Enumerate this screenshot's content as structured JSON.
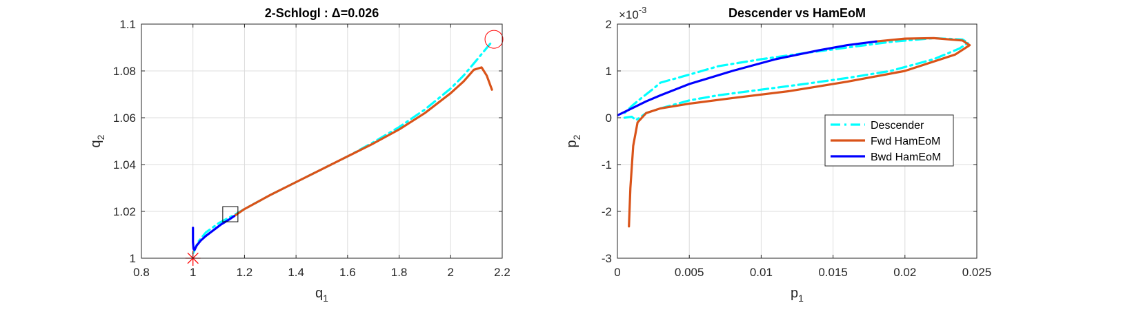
{
  "chart_data": [
    {
      "type": "line",
      "title": "2-Schlogl : Δ=0.026",
      "xlabel": "q",
      "xlabel_sub": "1",
      "ylabel": "q",
      "ylabel_sub": "2",
      "xlim": [
        0.8,
        2.2
      ],
      "ylim": [
        1.0,
        1.1
      ],
      "xticks": [
        0.8,
        1.0,
        1.2,
        1.4,
        1.6,
        1.8,
        2.0,
        2.2
      ],
      "xtick_labels": [
        "0.8",
        "1",
        "1.2",
        "1.4",
        "1.6",
        "1.8",
        "2",
        "2.2"
      ],
      "yticks": [
        1.0,
        1.02,
        1.04,
        1.06,
        1.08,
        1.1
      ],
      "ytick_labels": [
        "1",
        "1.02",
        "1.04",
        "1.06",
        "1.08",
        "1.1"
      ],
      "grid": true,
      "series": [
        {
          "color": "#00ffff",
          "style": "dashdot",
          "x": [
            1.0,
            1.02,
            1.05,
            1.1,
            1.16,
            1.2,
            1.3,
            1.4,
            1.5,
            1.6,
            1.7,
            1.8,
            1.9,
            2.0,
            2.05,
            2.1,
            2.16
          ],
          "y": [
            1.002,
            1.007,
            1.011,
            1.015,
            1.0185,
            1.021,
            1.027,
            1.0325,
            1.038,
            1.0435,
            1.0495,
            1.056,
            1.0635,
            1.0725,
            1.078,
            1.0845,
            1.0925
          ]
        },
        {
          "color": "#d95319",
          "style": "solid",
          "x": [
            1.16,
            1.2,
            1.3,
            1.4,
            1.5,
            1.6,
            1.7,
            1.8,
            1.9,
            2.0,
            2.05,
            2.09,
            2.12,
            2.14,
            2.16
          ],
          "y": [
            1.018,
            1.021,
            1.027,
            1.0325,
            1.038,
            1.0435,
            1.049,
            1.055,
            1.062,
            1.0705,
            1.0755,
            1.0805,
            1.0815,
            1.078,
            1.072
          ]
        },
        {
          "color": "#0000ff",
          "style": "solid",
          "x": [
            1.0,
            1.0,
            1.002,
            1.006,
            1.015,
            1.03,
            1.05,
            1.08,
            1.11,
            1.14,
            1.16
          ],
          "y": [
            1.013,
            1.007,
            1.004,
            1.0035,
            1.0055,
            1.0075,
            1.0095,
            1.012,
            1.0145,
            1.0165,
            1.018
          ]
        }
      ],
      "markers": [
        {
          "type": "star",
          "color": "#ff0000",
          "x": 1.0,
          "y": 1.0
        },
        {
          "type": "square",
          "color": "#000000",
          "x": 1.145,
          "y": 1.0188
        },
        {
          "type": "circle",
          "color": "#ff0000",
          "x": 2.168,
          "y": 1.0935
        }
      ]
    },
    {
      "type": "line",
      "title": "Descender vs HamEoM",
      "xlabel": "p",
      "xlabel_sub": "1",
      "ylabel": "p",
      "ylabel_sub": "2",
      "exponent_label": "×10",
      "exponent_power": "-3",
      "xlim": [
        0,
        0.025
      ],
      "ylim": [
        -3,
        2
      ],
      "xticks": [
        0,
        0.005,
        0.01,
        0.015,
        0.02,
        0.025
      ],
      "xtick_labels": [
        "0",
        "0.005",
        "0.01",
        "0.015",
        "0.02",
        "0.025"
      ],
      "yticks": [
        -3,
        -2,
        -1,
        0,
        1,
        2
      ],
      "ytick_labels": [
        "-3",
        "-2",
        "-1",
        "0",
        "1",
        "2"
      ],
      "grid": true,
      "legend": {
        "location": "east",
        "entries": [
          {
            "label": "Descender",
            "color": "#00ffff",
            "style": "dashdot"
          },
          {
            "label": "Fwd HamEoM",
            "color": "#d95319",
            "style": "solid"
          },
          {
            "label": "Bwd HamEoM",
            "color": "#0000ff",
            "style": "solid"
          }
        ]
      },
      "series": [
        {
          "name": "Descender",
          "color": "#00ffff",
          "style": "dashdot",
          "x": [
            0.0005,
            0.001,
            0.0013,
            0.002,
            0.003,
            0.005,
            0.007,
            0.01,
            0.013,
            0.016,
            0.019,
            0.022,
            0.0238,
            0.0244,
            0.024,
            0.022,
            0.019,
            0.016,
            0.013,
            0.01,
            0.007,
            0.005,
            0.003,
            0.0025,
            0.002,
            0.0015,
            0.001,
            0.0005
          ],
          "y": [
            0.0,
            0.02,
            -0.05,
            0.1,
            0.2,
            0.37,
            0.48,
            0.6,
            0.72,
            0.85,
            1.0,
            1.25,
            1.48,
            1.6,
            1.67,
            1.7,
            1.62,
            1.5,
            1.38,
            1.25,
            1.1,
            0.92,
            0.75,
            0.62,
            0.5,
            0.38,
            0.25,
            0.1
          ]
        },
        {
          "name": "Fwd HamEoM",
          "color": "#d95319",
          "style": "solid",
          "x": [
            0.0008,
            0.0009,
            0.0011,
            0.0014,
            0.002,
            0.003,
            0.005,
            0.008,
            0.012,
            0.016,
            0.02,
            0.0235,
            0.0245,
            0.024,
            0.022,
            0.02,
            0.018
          ],
          "y": [
            -2.32,
            -1.5,
            -0.6,
            -0.1,
            0.1,
            0.2,
            0.3,
            0.42,
            0.57,
            0.77,
            1.0,
            1.35,
            1.55,
            1.65,
            1.7,
            1.69,
            1.63
          ]
        },
        {
          "name": "Bwd HamEoM",
          "color": "#0000ff",
          "style": "solid",
          "x": [
            0.0,
            0.001,
            0.002,
            0.003,
            0.005,
            0.008,
            0.011,
            0.014,
            0.016,
            0.018
          ],
          "y": [
            0.05,
            0.2,
            0.35,
            0.48,
            0.72,
            1.0,
            1.25,
            1.44,
            1.55,
            1.63
          ]
        }
      ]
    }
  ]
}
